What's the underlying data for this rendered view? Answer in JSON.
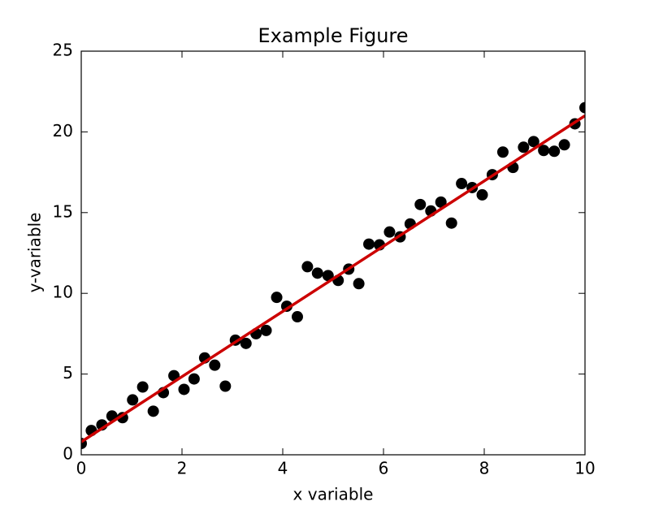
{
  "chart_data": {
    "type": "scatter",
    "title": "Example Figure",
    "xlabel": "x variable",
    "ylabel": "y-variable",
    "xlim": [
      0,
      10
    ],
    "ylim": [
      0,
      25
    ],
    "xticks": [
      0,
      2,
      4,
      6,
      8,
      10
    ],
    "yticks": [
      0,
      5,
      10,
      15,
      20,
      25
    ],
    "series": [
      {
        "type": "scatter",
        "color": "#000000",
        "x": [
          0,
          0.2,
          0.41,
          0.61,
          0.82,
          1.02,
          1.22,
          1.43,
          1.63,
          1.84,
          2.04,
          2.24,
          2.45,
          2.65,
          2.86,
          3.06,
          3.27,
          3.47,
          3.67,
          3.88,
          4.08,
          4.29,
          4.49,
          4.69,
          4.9,
          5.1,
          5.31,
          5.51,
          5.71,
          5.92,
          6.12,
          6.33,
          6.53,
          6.73,
          6.94,
          7.14,
          7.35,
          7.55,
          7.76,
          7.96,
          8.16,
          8.37,
          8.57,
          8.78,
          8.98,
          9.18,
          9.39,
          9.59,
          9.8,
          10
        ],
        "values": [
          0.7,
          1.5,
          1.85,
          2.4,
          2.3,
          3.4,
          4.2,
          2.7,
          3.85,
          4.9,
          4.05,
          4.7,
          6.0,
          5.55,
          4.25,
          7.1,
          6.9,
          7.5,
          7.7,
          9.75,
          9.2,
          8.55,
          11.65,
          11.25,
          11.1,
          10.8,
          11.5,
          10.6,
          13.05,
          13.0,
          13.8,
          13.5,
          14.3,
          15.5,
          15.1,
          15.65,
          14.35,
          16.8,
          16.55,
          16.1,
          17.35,
          18.75,
          17.8,
          19.05,
          19.4,
          18.85,
          18.8,
          19.2,
          20.5,
          21.5
        ]
      },
      {
        "type": "line",
        "color": "#cc0000",
        "x": [
          0,
          10
        ],
        "values": [
          0.8,
          21.0
        ]
      }
    ]
  }
}
